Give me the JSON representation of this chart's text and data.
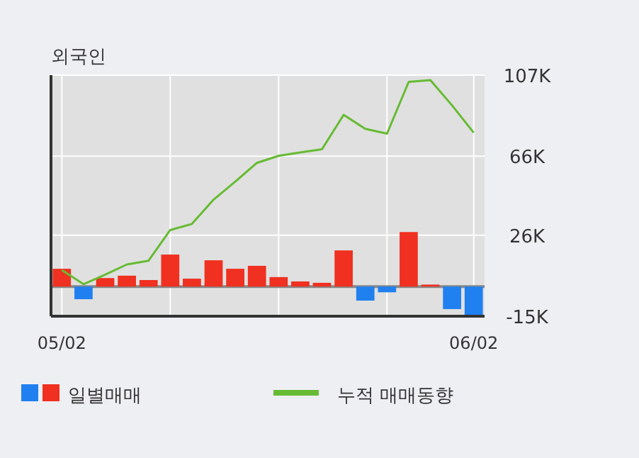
{
  "chart_data": {
    "type": "bar",
    "title": "외국인",
    "categories": [
      "05/02",
      null,
      null,
      null,
      null,
      null,
      null,
      null,
      null,
      null,
      null,
      null,
      null,
      null,
      null,
      null,
      null,
      null,
      null,
      "06/02"
    ],
    "series": [
      {
        "name": "일별매매",
        "colors": [
          "#f03020",
          "#2080f0",
          "#f03020",
          "#f03020",
          "#f03020",
          "#f03020",
          "#f03020",
          "#f03020",
          "#f03020",
          "#f03020",
          "#f03020",
          "#f03020",
          "#f03020",
          "#f03020",
          "#2080f0",
          "#2080f0",
          "#f03020",
          "#f03020",
          "#2080f0",
          "#2080f0"
        ],
        "values": [
          9000,
          -6400,
          4300,
          5500,
          3300,
          16200,
          4000,
          13300,
          9000,
          10500,
          4800,
          2600,
          1900,
          18300,
          -7100,
          -2900,
          27600,
          1000,
          -11400,
          -14300
        ]
      },
      {
        "name": "누적 매매동향",
        "type": "line",
        "color": "#66bb33",
        "values": [
          8300,
          1200,
          6000,
          11200,
          13100,
          28600,
          31700,
          44000,
          53100,
          62600,
          66200,
          67900,
          69500,
          86900,
          79800,
          77400,
          103600,
          104500,
          91700,
          77900
        ]
      }
    ],
    "ylim": [
      -15000,
      107000
    ],
    "yticks": [
      {
        "value": 107000,
        "label": "107K"
      },
      {
        "value": 66000,
        "label": "66K"
      },
      {
        "value": 26000,
        "label": "26K"
      },
      {
        "value": -15000,
        "label": "-15K"
      }
    ],
    "ref_lines": [
      {
        "axis": "y",
        "value": 0,
        "color": "#888888"
      }
    ],
    "grid": true,
    "legend": "bottom"
  }
}
